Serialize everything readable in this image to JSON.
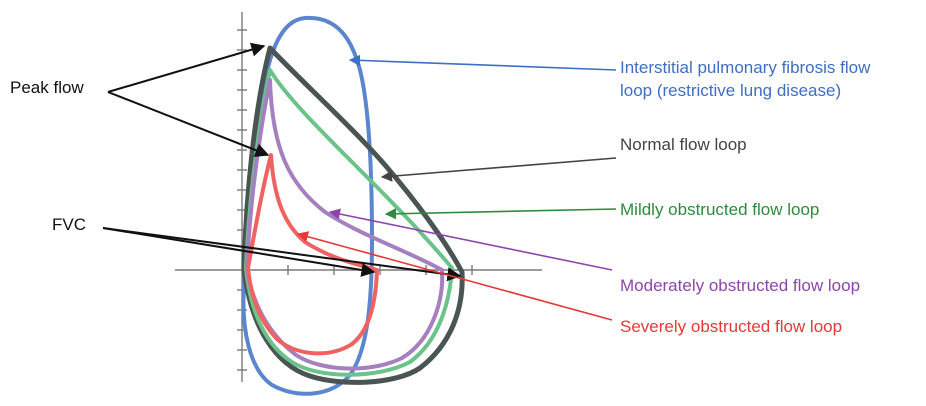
{
  "labels": {
    "peak_flow": "Peak flow",
    "fvc": "FVC",
    "ipf_line1": "Interstitial pulmonary fibrosis flow",
    "ipf_line2": "loop (restrictive lung disease)",
    "normal": "Normal flow loop",
    "mild": "Mildly obstructed flow loop",
    "moderate": "Moderately obstructed flow loop",
    "severe": "Severely obstructed flow loop"
  },
  "colors": {
    "ipf": "#5b86cf",
    "normal": "#4a5553",
    "mild": "#6cc38a",
    "moderate": "#a57fbf",
    "severe": "#f06262",
    "axis": "#7a7a7a",
    "text_black": "#111111",
    "text_gray": "#444444",
    "text_green": "#2e8b3e",
    "text_purple": "#8e44ad",
    "text_red": "#e53935",
    "text_blue": "#3d6fc4"
  }
}
